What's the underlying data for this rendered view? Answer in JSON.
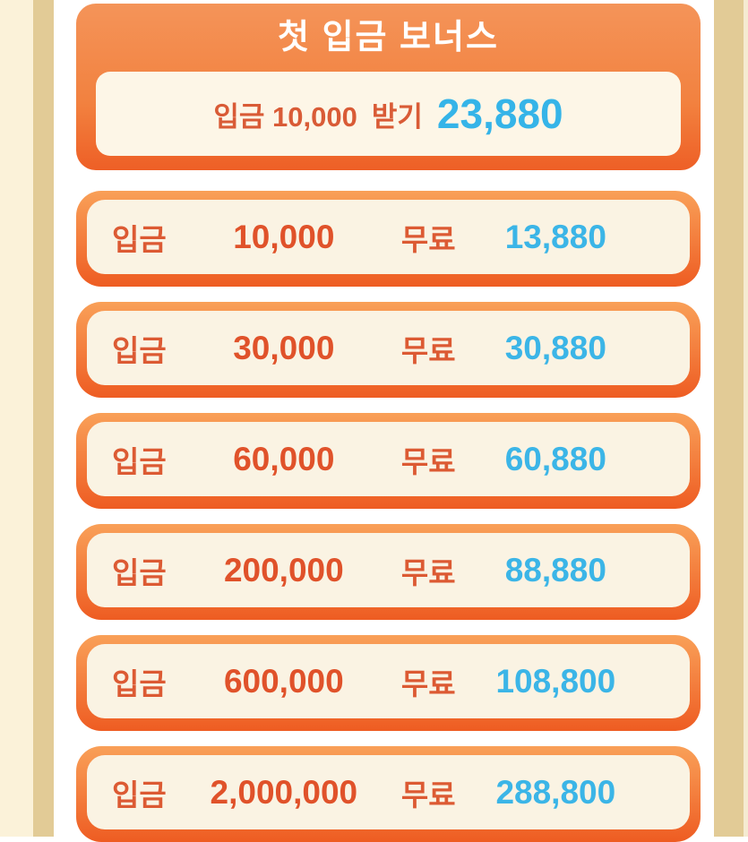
{
  "colors": {
    "page_background": "#ffffff",
    "left_cream_strip": "#fbf2d9",
    "tan_strip": "#e2cb96",
    "right_cream_strip": "#f5ebd1",
    "card_border_top": "#f9a058",
    "card_border_bottom": "#ee5c22",
    "card_inner_fill": "#faf3e3",
    "header_inner_fill": "#fdf6e7",
    "orange_text": "#dc5a33",
    "amount_text": "#e0522a",
    "bonus_text": "#3bb5e7",
    "title_text": "#ffffff"
  },
  "header_card": {
    "title": "첫 입금 보너스",
    "deposit_label": "입금",
    "deposit_amount": "10,000",
    "claim_label": "받기",
    "bonus_value": "23,880"
  },
  "tier_list": {
    "deposit_label": "입금",
    "free_label": "무료",
    "tiers": [
      {
        "deposit": "10,000",
        "bonus": "13,880"
      },
      {
        "deposit": "30,000",
        "bonus": "30,880"
      },
      {
        "deposit": "60,000",
        "bonus": "60,880"
      },
      {
        "deposit": "200,000",
        "bonus": "88,880"
      },
      {
        "deposit": "600,000",
        "bonus": "108,800"
      },
      {
        "deposit": "2,000,000",
        "bonus": "288,800"
      }
    ]
  }
}
